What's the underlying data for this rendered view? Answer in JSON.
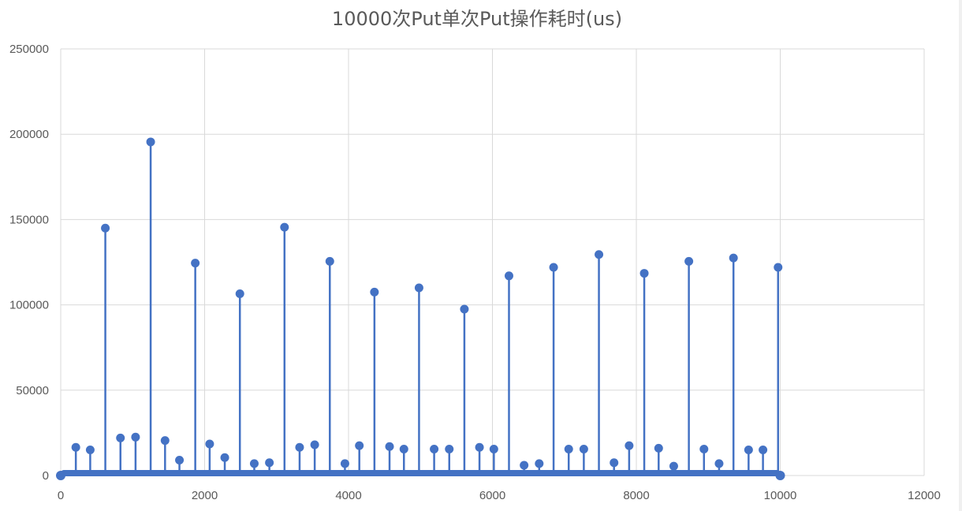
{
  "chart_data": {
    "type": "scatter",
    "style": "stem",
    "title": "10000次Put单次Put操作耗时(us)",
    "xlabel": "",
    "ylabel": "",
    "xlim": [
      0,
      12000
    ],
    "ylim": [
      0,
      250000
    ],
    "x_ticks": [
      0,
      2000,
      4000,
      6000,
      8000,
      10000,
      12000
    ],
    "y_ticks": [
      0,
      50000,
      100000,
      150000,
      200000,
      250000
    ],
    "x_tick_labels": [
      "0",
      "2000",
      "4000",
      "6000",
      "8000",
      "10000",
      "12000"
    ],
    "y_tick_labels": [
      "0",
      "50000",
      "100000",
      "150000",
      "200000",
      "250000"
    ],
    "grid": true,
    "legend": "none",
    "series_color": "#4472c4",
    "baseline_range": [
      0,
      10000
    ],
    "series": [
      {
        "values": [
          [
            210,
            16500
          ],
          [
            410,
            15000
          ],
          [
            620,
            145000
          ],
          [
            830,
            22000
          ],
          [
            1040,
            22500
          ],
          [
            1250,
            195500
          ],
          [
            1450,
            20500
          ],
          [
            1650,
            9000
          ],
          [
            1870,
            124500
          ],
          [
            2070,
            18500
          ],
          [
            2280,
            10500
          ],
          [
            2490,
            106500
          ],
          [
            2690,
            7000
          ],
          [
            2900,
            7500
          ],
          [
            3110,
            145500
          ],
          [
            3320,
            16500
          ],
          [
            3530,
            18000
          ],
          [
            3740,
            125500
          ],
          [
            3950,
            7000
          ],
          [
            4150,
            17500
          ],
          [
            4360,
            107500
          ],
          [
            4570,
            17000
          ],
          [
            4770,
            15500
          ],
          [
            4980,
            110000
          ],
          [
            5190,
            15500
          ],
          [
            5400,
            15500
          ],
          [
            5610,
            97500
          ],
          [
            5820,
            16500
          ],
          [
            6020,
            15500
          ],
          [
            6230,
            117000
          ],
          [
            6440,
            6000
          ],
          [
            6650,
            7000
          ],
          [
            6850,
            122000
          ],
          [
            7060,
            15500
          ],
          [
            7270,
            15500
          ],
          [
            7480,
            129500
          ],
          [
            7690,
            7500
          ],
          [
            7900,
            17500
          ],
          [
            8110,
            118500
          ],
          [
            8310,
            16000
          ],
          [
            8520,
            5500
          ],
          [
            8730,
            125500
          ],
          [
            8940,
            15500
          ],
          [
            9150,
            7000
          ],
          [
            9350,
            127500
          ],
          [
            9560,
            15000
          ],
          [
            9760,
            15000
          ],
          [
            9970,
            122000
          ]
        ]
      }
    ]
  }
}
